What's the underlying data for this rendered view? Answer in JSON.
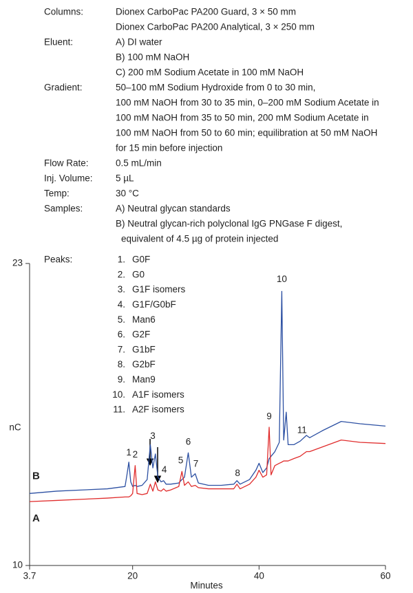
{
  "conditions": [
    {
      "label": "Columns:",
      "lines": [
        "Dionex CarboPac PA200 Guard, 3 × 50 mm",
        "Dionex CarboPac PA200 Analytical, 3 × 250 mm"
      ]
    },
    {
      "label": "Eluent:",
      "lines": [
        "A) DI water",
        "B) 100 mM NaOH",
        "C) 200 mM Sodium Acetate in 100 mM NaOH"
      ]
    },
    {
      "label": "Gradient:",
      "lines": [
        "50–100 mM Sodium Hydroxide from 0 to 30 min,",
        "100 mM NaOH from 30 to 35 min, 0–200 mM Sodium Acetate in",
        "100 mM NaOH from 35 to 50 min, 200 mM Sodium Acetate in",
        "100 mM NaOH from 50 to 60 min; equilibration at 50 mM NaOH",
        "for 15 min before injection"
      ]
    },
    {
      "label": "Flow Rate:",
      "lines": [
        "0.5 mL/min"
      ]
    },
    {
      "label": "Inj. Volume:",
      "lines": [
        "5 µL"
      ]
    },
    {
      "label": "Temp:",
      "lines": [
        "30 °C"
      ]
    },
    {
      "label": "Samples:",
      "lines": [
        "A) Neutral glycan standards",
        "B) Neutral glycan-rich polyclonal IgG PNGase F digest,",
        "equivalent of 4.5 µg of protein injected"
      ]
    }
  ],
  "peaks": {
    "label": "Peaks:",
    "items": [
      {
        "num": "1.",
        "name": "G0F"
      },
      {
        "num": "2.",
        "name": "G0"
      },
      {
        "num": "3.",
        "name": "G1F isomers"
      },
      {
        "num": "4.",
        "name": "G1F/G0bF"
      },
      {
        "num": "5.",
        "name": "Man6"
      },
      {
        "num": "6.",
        "name": "G2F"
      },
      {
        "num": "7.",
        "name": "G1bF"
      },
      {
        "num": "8.",
        "name": "G2bF"
      },
      {
        "num": "9.",
        "name": "Man9"
      },
      {
        "num": "10.",
        "name": "A1F isomers"
      },
      {
        "num": "11.",
        "name": "A2F isomers"
      }
    ]
  },
  "chart_data": {
    "type": "line",
    "xlabel": "Minutes",
    "ylabel": "nC",
    "xlim": [
      3.7,
      60
    ],
    "xticks": [
      3.7,
      20,
      40,
      60
    ],
    "ylim": [
      10,
      23
    ],
    "yticks": [
      10,
      23
    ],
    "x": [
      3.7,
      8,
      12,
      16,
      18.8,
      19.1,
      19.4,
      19.7,
      20.0,
      20.4,
      20.7,
      21.5,
      22.3,
      22.8,
      23.2,
      23.6,
      24.0,
      24.5,
      24.9,
      25.3,
      26,
      27.3,
      27.8,
      28.2,
      28.8,
      29.3,
      29.9,
      30.4,
      32,
      34,
      36,
      36.5,
      37,
      38.5,
      39.5,
      40,
      40.6,
      41.2,
      41.6,
      41.9,
      42.5,
      43.2,
      43.6,
      43.9,
      44.3,
      44.6,
      45.5,
      46.5,
      47.5,
      48,
      50,
      53,
      56,
      60
    ],
    "series": [
      {
        "name": "B",
        "color": "#2b4fa2",
        "values": [
          13.1,
          13.2,
          13.25,
          13.3,
          13.4,
          13.9,
          14.45,
          13.6,
          13.4,
          13.45,
          13.4,
          13.45,
          13.7,
          15.2,
          14.2,
          14.8,
          13.8,
          13.6,
          13.65,
          13.5,
          13.5,
          13.55,
          13.7,
          13.8,
          14.85,
          13.8,
          13.95,
          13.55,
          13.45,
          13.45,
          13.5,
          13.65,
          13.5,
          13.7,
          14.1,
          14.4,
          14.0,
          14.2,
          14.6,
          14.7,
          14.9,
          15.3,
          21.8,
          15.4,
          16.6,
          15.2,
          15.2,
          15.35,
          15.6,
          15.5,
          15.8,
          16.2,
          16.1,
          16.0
        ]
      },
      {
        "name": "A",
        "color": "#e02b2b",
        "values": [
          12.75,
          12.8,
          12.85,
          12.9,
          12.95,
          12.95,
          12.95,
          13.0,
          13.1,
          14.3,
          13.1,
          13.05,
          13.1,
          13.5,
          13.2,
          13.6,
          13.25,
          13.2,
          13.3,
          13.2,
          13.25,
          13.4,
          14.05,
          13.45,
          13.6,
          13.4,
          13.45,
          13.35,
          13.3,
          13.3,
          13.3,
          13.5,
          13.3,
          13.5,
          13.8,
          14.1,
          13.8,
          13.9,
          15.95,
          13.9,
          14.3,
          14.4,
          14.45,
          14.5,
          14.5,
          14.5,
          14.6,
          14.7,
          14.9,
          14.9,
          15.1,
          15.4,
          15.3,
          15.25
        ]
      }
    ],
    "peak_labels": [
      {
        "text": "1",
        "x": 19.4,
        "y": 14.85
      },
      {
        "text": "2",
        "x": 20.4,
        "y": 14.75
      },
      {
        "text": "3",
        "x": 23.2,
        "y": 15.55
      },
      {
        "text": "4",
        "x": 25.0,
        "y": 14.1
      },
      {
        "text": "5",
        "x": 27.6,
        "y": 14.5
      },
      {
        "text": "6",
        "x": 28.8,
        "y": 15.3
      },
      {
        "text": "7",
        "x": 30.0,
        "y": 14.35
      },
      {
        "text": "8",
        "x": 36.6,
        "y": 13.95
      },
      {
        "text": "9",
        "x": 41.6,
        "y": 16.4
      },
      {
        "text": "10",
        "x": 43.6,
        "y": 22.3
      },
      {
        "text": "11",
        "x": 46.8,
        "y": 15.8
      }
    ]
  }
}
